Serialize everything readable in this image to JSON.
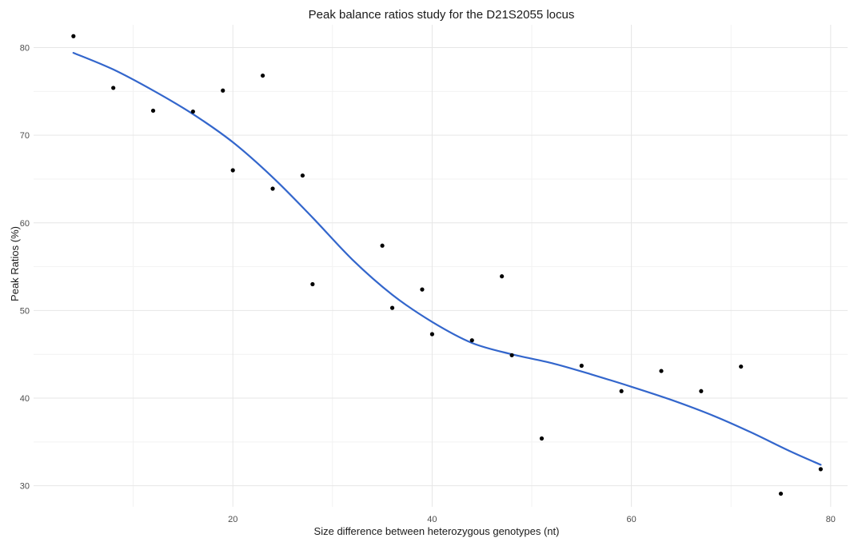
{
  "chart_data": {
    "type": "scatter",
    "title": "Peak balance ratios study for the D21S2055 locus",
    "xlabel": "Size difference between heterozygous genotypes (nt)",
    "ylabel": "Peak Ratios (%)",
    "xlim": [
      0,
      81.7
    ],
    "ylim": [
      27.6,
      82.6
    ],
    "x_ticks": [
      20,
      40,
      60,
      80
    ],
    "y_ticks": [
      30,
      40,
      50,
      60,
      70,
      80
    ],
    "x_minor_ticks": [
      10,
      30,
      50,
      70
    ],
    "y_minor_ticks": [
      35,
      45,
      55,
      65,
      75
    ],
    "grid": true,
    "colors": {
      "points": "#000000",
      "trend": "#3366cc"
    },
    "series": [
      {
        "kind": "points",
        "x": [
          4,
          8,
          12,
          16,
          19,
          20,
          23,
          24,
          27,
          28,
          35,
          36,
          39,
          40,
          44,
          47,
          48,
          51,
          55,
          59,
          63,
          67,
          71,
          75,
          79
        ],
        "y": [
          81.3,
          75.4,
          72.8,
          72.7,
          75.1,
          66.0,
          76.8,
          63.9,
          65.4,
          53.0,
          57.4,
          50.3,
          52.4,
          47.3,
          46.6,
          53.9,
          44.9,
          35.4,
          43.7,
          40.8,
          43.1,
          40.8,
          43.6,
          29.1,
          31.9
        ]
      },
      {
        "kind": "smooth",
        "x": [
          4,
          8,
          12,
          16,
          20,
          24,
          28,
          32,
          36,
          40,
          44,
          48,
          52,
          56,
          60,
          64,
          68,
          72,
          76,
          79
        ],
        "y": [
          79.4,
          77.5,
          75.1,
          72.4,
          69.2,
          65.2,
          60.6,
          55.8,
          51.8,
          48.7,
          46.3,
          45.0,
          44.0,
          42.7,
          41.3,
          39.8,
          38.1,
          36.1,
          33.9,
          32.4
        ]
      }
    ]
  }
}
